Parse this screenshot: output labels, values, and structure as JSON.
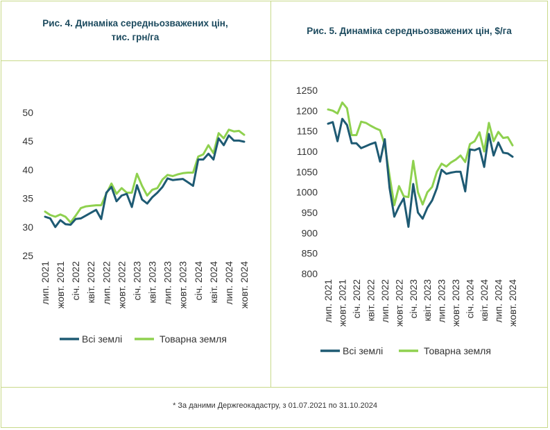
{
  "footnote": "* За даними Держгеокадастру, з 01.07.2021 по 31.10.2024",
  "colors": {
    "all_lands": "#1e5a73",
    "commodity_land": "#8fd14f",
    "border": "#c8d98a",
    "title": "#1c4a5e"
  },
  "chart_data": [
    {
      "type": "line",
      "title": "Рис. 4. Динаміка середньозважених цін, тис. грн/га",
      "xlabel": "",
      "ylabel": "",
      "ylim": [
        25,
        50
      ],
      "yticks": [
        "25",
        "30",
        "35",
        "40",
        "45",
        "50"
      ],
      "xtick_labels": [
        "лип. 2021",
        "жовт. 2021",
        "січ. 2022",
        "квіт. 2022",
        "лип. 2022",
        "жовт. 2022",
        "січ. 2023",
        "квіт. 2023",
        "лип. 2023",
        "жовт. 2023",
        "січ. 2024",
        "квіт. 2024",
        "лип. 2024",
        "жовт. 2024"
      ],
      "legend": [
        "Всі землі",
        "Товарна земля"
      ],
      "series": [
        {
          "name": "Всі землі",
          "values": [
            31.8,
            31.5,
            30.0,
            31.2,
            30.5,
            30.4,
            31.4,
            31.5,
            32.0,
            32.5,
            33.0,
            31.4,
            36.0,
            37.0,
            34.5,
            35.5,
            35.8,
            33.5,
            37.3,
            34.8,
            34.1,
            35.2,
            36.0,
            37.0,
            38.5,
            38.2,
            38.3,
            38.4,
            37.8,
            37.2,
            41.8,
            41.8,
            42.8,
            41.8,
            45.5,
            44.3,
            46.0,
            45.1,
            45.1,
            44.9
          ]
        },
        {
          "name": "Товарна земля",
          "values": [
            32.7,
            32.1,
            31.8,
            32.2,
            31.8,
            30.8,
            32.0,
            33.3,
            33.6,
            33.7,
            33.8,
            33.8,
            35.8,
            37.6,
            35.8,
            36.8,
            36.0,
            36.0,
            39.3,
            37.2,
            35.5,
            36.5,
            36.8,
            38.3,
            39.1,
            38.9,
            39.2,
            39.4,
            39.5,
            39.5,
            42.3,
            42.7,
            44.3,
            42.9,
            46.4,
            45.5,
            47.0,
            46.7,
            46.8,
            46.1
          ]
        }
      ]
    },
    {
      "type": "line",
      "title": "Рис. 5. Динаміка середньозважених цін, $/га",
      "xlabel": "",
      "ylabel": "",
      "ylim": [
        800,
        1250
      ],
      "yticks": [
        "800",
        "850",
        "900",
        "950",
        "1000",
        "1050",
        "1100",
        "1150",
        "1200",
        "1250"
      ],
      "xtick_labels": [
        "лип. 2021",
        "жовт. 2021",
        "січ. 2022",
        "квіт. 2022",
        "лип. 2022",
        "жовт. 2022",
        "січ. 2023",
        "квіт. 2023",
        "лип. 2023",
        "жовт. 2023",
        "січ. 2024",
        "квіт. 2024",
        "лип. 2024",
        "жовт. 2024"
      ],
      "legend": [
        "Всі землі",
        "Товарна земля"
      ],
      "series": [
        {
          "name": "Всі землі",
          "values": [
            1168,
            1172,
            1125,
            1180,
            1165,
            1120,
            1120,
            1108,
            1113,
            1118,
            1122,
            1075,
            1130,
            1010,
            940,
            965,
            985,
            915,
            1020,
            950,
            935,
            962,
            980,
            1010,
            1055,
            1045,
            1048,
            1050,
            1050,
            1002,
            1105,
            1103,
            1108,
            1062,
            1143,
            1090,
            1122,
            1097,
            1095,
            1087
          ]
        },
        {
          "name": "Товарна земля",
          "values": [
            1203,
            1200,
            1193,
            1220,
            1206,
            1140,
            1140,
            1173,
            1170,
            1163,
            1157,
            1152,
            1116,
            1040,
            968,
            1015,
            990,
            988,
            1077,
            1000,
            970,
            1000,
            1013,
            1050,
            1070,
            1063,
            1073,
            1080,
            1090,
            1074,
            1118,
            1125,
            1147,
            1100,
            1170,
            1125,
            1148,
            1133,
            1135,
            1115
          ]
        }
      ]
    }
  ]
}
